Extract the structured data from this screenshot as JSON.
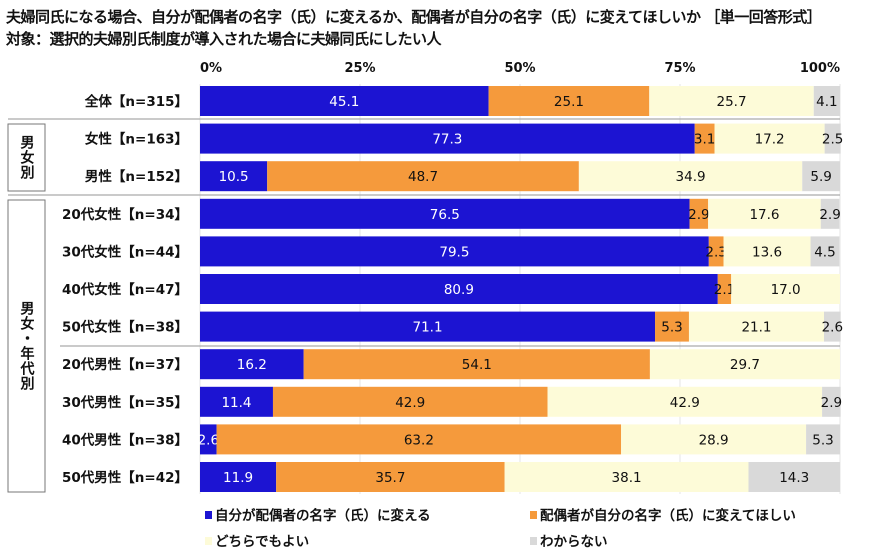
{
  "chart_data": {
    "type": "bar",
    "orientation": "horizontal",
    "stacked": true,
    "title": "夫婦同氏になる場合、自分が配偶者の名字（氏）に変えるか、配偶者が自分の名字（氏）に変えてほしいか ［単一回答形式］",
    "subtitle": "対象：選択的夫婦別氏制度が導入された場合に夫婦同氏にしたい人",
    "xlim": [
      0,
      100
    ],
    "x_ticks": [
      "0%",
      "25%",
      "50%",
      "75%",
      "100%"
    ],
    "x_tick_values": [
      0,
      25,
      50,
      75,
      100
    ],
    "grid": true,
    "legend_position": "bottom",
    "groups": [
      {
        "label": "男女別",
        "rows": [
          1,
          2
        ]
      },
      {
        "label": "男女・年代別",
        "rows": [
          3,
          4,
          5,
          6,
          7,
          8,
          9,
          10
        ]
      }
    ],
    "categories": [
      "全体【n=315】",
      "女性【n=163】",
      "男性【n=152】",
      "20代女性【n=34】",
      "30代女性【n=44】",
      "40代女性【n=47】",
      "50代女性【n=38】",
      "20代男性【n=37】",
      "30代男性【n=35】",
      "40代男性【n=38】",
      "50代男性【n=42】"
    ],
    "series": [
      {
        "name": "自分が配偶者の名字（氏）に変える",
        "color": "#1c14d2",
        "label_color": "#ffffff",
        "values": [
          45.1,
          77.3,
          10.5,
          76.5,
          79.5,
          80.9,
          71.1,
          16.2,
          11.4,
          2.6,
          11.9
        ]
      },
      {
        "name": "配偶者が自分の名字（氏）に変えてほしい",
        "color": "#f59a3c",
        "label_color": "#111111",
        "values": [
          25.1,
          3.1,
          48.7,
          2.9,
          2.3,
          2.1,
          5.3,
          54.1,
          42.9,
          63.2,
          35.7
        ]
      },
      {
        "name": "どちらでもよい",
        "color": "#fdfbd8",
        "label_color": "#111111",
        "values": [
          25.7,
          17.2,
          34.9,
          17.6,
          13.6,
          17.0,
          21.1,
          29.7,
          42.9,
          28.9,
          38.1
        ]
      },
      {
        "name": "わからない",
        "color": "#d9d9d9",
        "label_color": "#111111",
        "values": [
          4.1,
          2.5,
          5.9,
          2.9,
          4.5,
          0,
          2.6,
          0,
          2.9,
          5.3,
          14.3
        ]
      }
    ]
  }
}
